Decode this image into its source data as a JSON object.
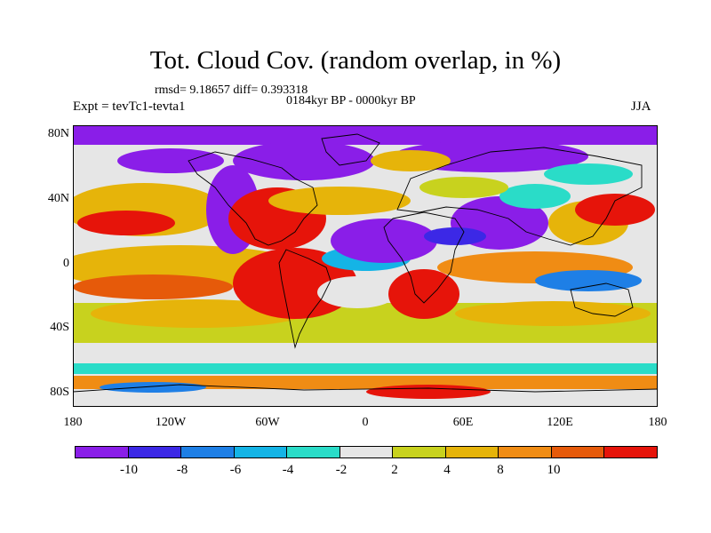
{
  "title": "Tot. Cloud Cov. (random overlap, in %)",
  "stats": "rmsd= 9.18657 diff= 0.393318",
  "period": "0184kyr BP - 0000kyr BP",
  "experiment": "Expt = tevTc1-tevta1",
  "season": "JJA",
  "lat_labels": [
    "80N",
    "40N",
    "0",
    "40S",
    "80S"
  ],
  "lon_labels": [
    "180",
    "120W",
    "60W",
    "0",
    "60E",
    "120E",
    "180"
  ],
  "colorbar": {
    "labels": [
      "-10",
      "-8",
      "-6",
      "-4",
      "-2",
      "2",
      "4",
      "8",
      "10"
    ],
    "colors": [
      "#8a1ee8",
      "#3c28e6",
      "#1e7fe6",
      "#14b4e6",
      "#2adcc8",
      "#e6e6e6",
      "#c8d21e",
      "#e6b40a",
      "#f08c14",
      "#e65a0a",
      "#e6140a"
    ]
  },
  "icons": [
    "world-coastline-map"
  ]
}
